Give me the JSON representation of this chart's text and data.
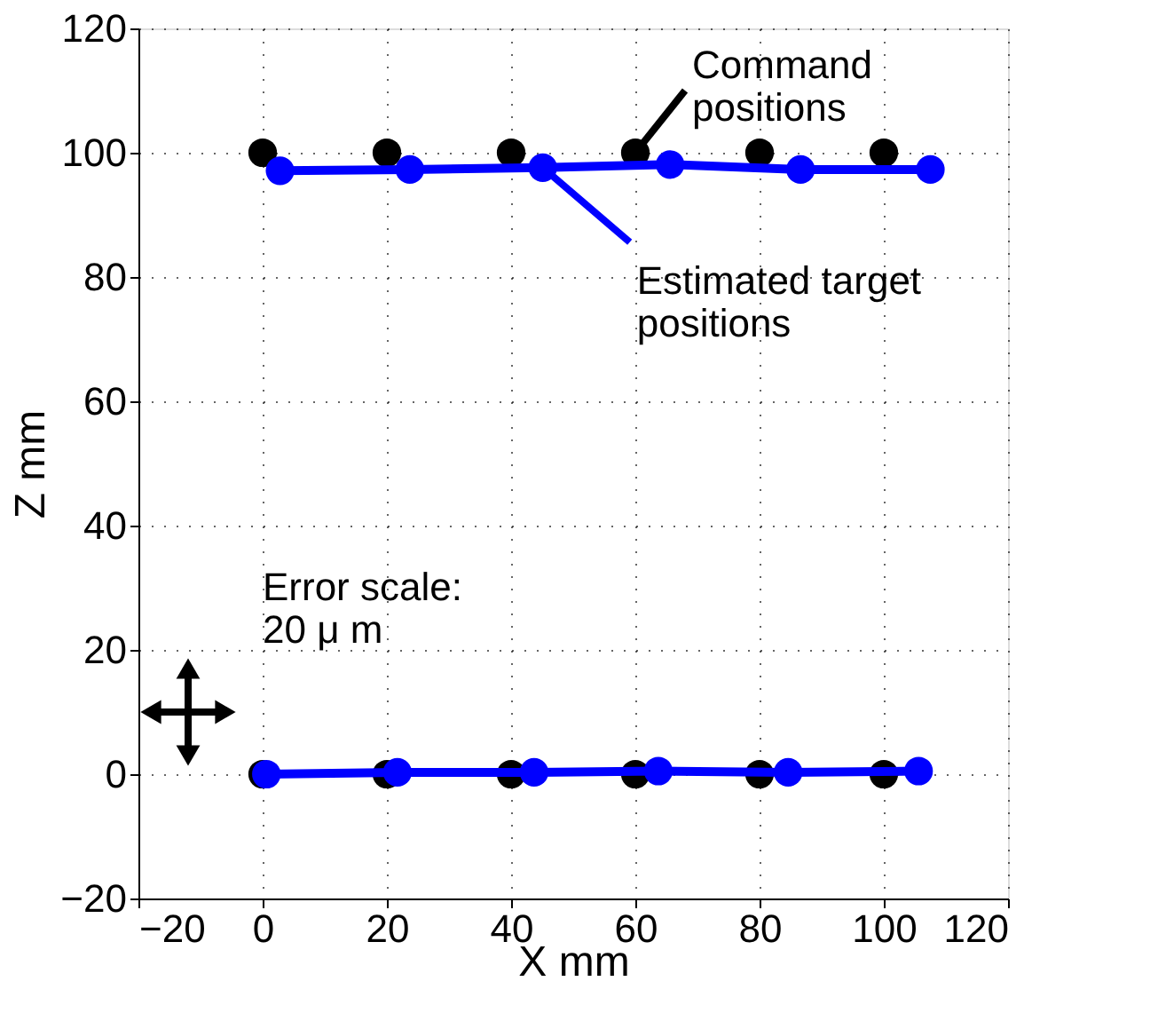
{
  "chart_data": {
    "type": "scatter",
    "xlabel": "X mm",
    "ylabel": "Z mm",
    "xlim": [
      -20,
      120
    ],
    "xticks": [
      -20,
      0,
      20,
      40,
      60,
      80,
      100,
      120
    ],
    "ylim": [
      -20,
      120
    ],
    "yticks": [
      -20,
      0,
      20,
      40,
      60,
      80,
      100,
      120
    ],
    "grid": true,
    "series": [
      {
        "color": "#000000",
        "marker": "circle",
        "x": [
          0,
          20,
          40,
          60,
          80,
          100,
          0,
          20,
          40,
          60,
          80,
          100
        ],
        "values": [
          100,
          100,
          100,
          100,
          100,
          100,
          0,
          0,
          0,
          0,
          0,
          0
        ]
      },
      {
        "type": "line",
        "color": "#0000ff",
        "marker": "circle",
        "x": [
          2.8,
          23.7,
          45.1,
          65.6,
          86.6,
          107.5
        ],
        "values": [
          97.1,
          97.3,
          97.6,
          98.1,
          97.3,
          97.3
        ]
      },
      {
        "type": "line",
        "color": "#0000ff",
        "marker": "circle",
        "x": [
          0.6,
          21.7,
          43.7,
          63.7,
          84.6,
          105.6
        ],
        "values": [
          0,
          0.3,
          0.3,
          0.5,
          0.3,
          0.5
        ]
      }
    ],
    "annotations": [
      {
        "text": "Command\npositions",
        "x": 60,
        "y": 100
      },
      {
        "text": "Estimated target\npositions",
        "x": 45.1,
        "y": 97.6
      },
      "Error scale:\n20 μ m"
    ]
  }
}
